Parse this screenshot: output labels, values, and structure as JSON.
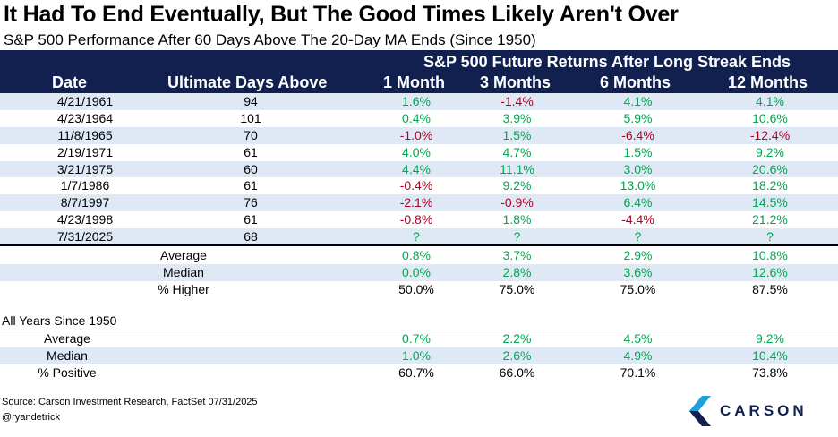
{
  "title": "It Had To End Eventually, But The Good Times Likely Aren't Over",
  "subtitle": "S&P 500 Performance After 60 Days Above The 20-Day MA Ends (Since 1950)",
  "header": {
    "span_title": "S&P 500 Future Returns After Long Streak Ends",
    "columns": [
      "Date",
      "Ultimate Days Above",
      "1 Month",
      "3 Months",
      "6 Months",
      "12 Months"
    ]
  },
  "rows": [
    {
      "date": "4/21/1961",
      "days": "94",
      "m1": "1.6%",
      "m3": "-1.4%",
      "m6": "4.1%",
      "m12": "4.1%"
    },
    {
      "date": "4/23/1964",
      "days": "101",
      "m1": "0.4%",
      "m3": "3.9%",
      "m6": "5.9%",
      "m12": "10.6%"
    },
    {
      "date": "11/8/1965",
      "days": "70",
      "m1": "-1.0%",
      "m3": "1.5%",
      "m6": "-6.4%",
      "m12": "-12.4%"
    },
    {
      "date": "2/19/1971",
      "days": "61",
      "m1": "4.0%",
      "m3": "4.7%",
      "m6": "1.5%",
      "m12": "9.2%"
    },
    {
      "date": "3/21/1975",
      "days": "60",
      "m1": "4.4%",
      "m3": "11.1%",
      "m6": "3.0%",
      "m12": "20.6%"
    },
    {
      "date": "1/7/1986",
      "days": "61",
      "m1": "-0.4%",
      "m3": "9.2%",
      "m6": "13.0%",
      "m12": "18.2%"
    },
    {
      "date": "8/7/1997",
      "days": "76",
      "m1": "-2.1%",
      "m3": "-0.9%",
      "m6": "6.4%",
      "m12": "14.5%"
    },
    {
      "date": "4/23/1998",
      "days": "61",
      "m1": "-0.8%",
      "m3": "1.8%",
      "m6": "-4.4%",
      "m12": "21.2%"
    },
    {
      "date": "7/31/2025",
      "days": "68",
      "m1": "?",
      "m3": "?",
      "m6": "?",
      "m12": "?"
    }
  ],
  "summary": [
    {
      "label": "Average",
      "m1": "0.8%",
      "m3": "3.7%",
      "m6": "2.9%",
      "m12": "10.8%"
    },
    {
      "label": "Median",
      "m1": "0.0%",
      "m3": "2.8%",
      "m6": "3.6%",
      "m12": "12.6%"
    },
    {
      "label": "% Higher",
      "m1": "50.0%",
      "m3": "75.0%",
      "m6": "75.0%",
      "m12": "87.5%"
    }
  ],
  "all_years": {
    "heading": "All Years Since 1950",
    "rows": [
      {
        "label": "Average",
        "m1": "0.7%",
        "m3": "2.2%",
        "m6": "4.5%",
        "m12": "9.2%"
      },
      {
        "label": "Median",
        "m1": "1.0%",
        "m3": "2.6%",
        "m6": "4.9%",
        "m12": "10.4%"
      },
      {
        "label": "% Positive",
        "m1": "60.7%",
        "m3": "66.0%",
        "m6": "70.1%",
        "m12": "73.8%"
      }
    ]
  },
  "source": "Source: Carson Investment Research, FactSet 07/31/2025",
  "handle": "@ryandetrick",
  "logo_text": "CARSON",
  "colors": {
    "header_bg": "#11204f",
    "shade": "#dfe9f5",
    "positive": "#00a651",
    "negative": "#b00020"
  }
}
